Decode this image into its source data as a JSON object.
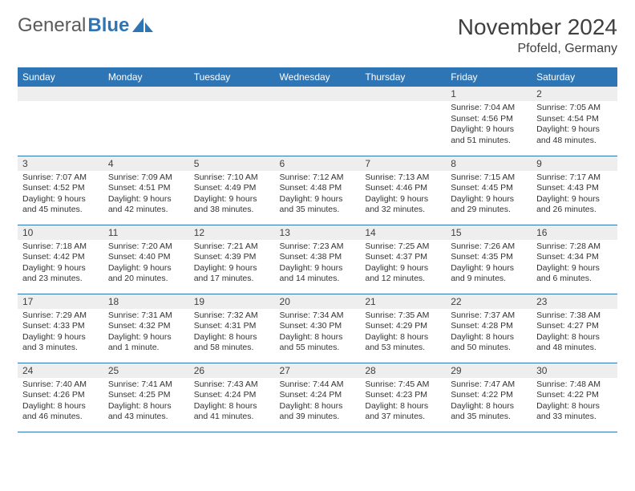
{
  "brand": {
    "part1": "General",
    "part2": "Blue"
  },
  "title": "November 2024",
  "location": "Pfofeld, Germany",
  "colors": {
    "header_bg": "#2e75b6",
    "header_fg": "#ffffff",
    "daynum_bg": "#eeeeee",
    "text": "#333333",
    "rule": "#2e75b6",
    "background": "#ffffff"
  },
  "typography": {
    "title_fontsize": 28,
    "location_fontsize": 16,
    "weekday_fontsize": 12,
    "daynum_fontsize": 12,
    "details_fontsize": 10.5
  },
  "layout": {
    "columns": 7,
    "rows": 5,
    "leading_blanks": 5
  },
  "weekdays": [
    "Sunday",
    "Monday",
    "Tuesday",
    "Wednesday",
    "Thursday",
    "Friday",
    "Saturday"
  ],
  "days": [
    {
      "n": 1,
      "sunrise": "7:04 AM",
      "sunset": "4:56 PM",
      "daylight": "9 hours and 51 minutes."
    },
    {
      "n": 2,
      "sunrise": "7:05 AM",
      "sunset": "4:54 PM",
      "daylight": "9 hours and 48 minutes."
    },
    {
      "n": 3,
      "sunrise": "7:07 AM",
      "sunset": "4:52 PM",
      "daylight": "9 hours and 45 minutes."
    },
    {
      "n": 4,
      "sunrise": "7:09 AM",
      "sunset": "4:51 PM",
      "daylight": "9 hours and 42 minutes."
    },
    {
      "n": 5,
      "sunrise": "7:10 AM",
      "sunset": "4:49 PM",
      "daylight": "9 hours and 38 minutes."
    },
    {
      "n": 6,
      "sunrise": "7:12 AM",
      "sunset": "4:48 PM",
      "daylight": "9 hours and 35 minutes."
    },
    {
      "n": 7,
      "sunrise": "7:13 AM",
      "sunset": "4:46 PM",
      "daylight": "9 hours and 32 minutes."
    },
    {
      "n": 8,
      "sunrise": "7:15 AM",
      "sunset": "4:45 PM",
      "daylight": "9 hours and 29 minutes."
    },
    {
      "n": 9,
      "sunrise": "7:17 AM",
      "sunset": "4:43 PM",
      "daylight": "9 hours and 26 minutes."
    },
    {
      "n": 10,
      "sunrise": "7:18 AM",
      "sunset": "4:42 PM",
      "daylight": "9 hours and 23 minutes."
    },
    {
      "n": 11,
      "sunrise": "7:20 AM",
      "sunset": "4:40 PM",
      "daylight": "9 hours and 20 minutes."
    },
    {
      "n": 12,
      "sunrise": "7:21 AM",
      "sunset": "4:39 PM",
      "daylight": "9 hours and 17 minutes."
    },
    {
      "n": 13,
      "sunrise": "7:23 AM",
      "sunset": "4:38 PM",
      "daylight": "9 hours and 14 minutes."
    },
    {
      "n": 14,
      "sunrise": "7:25 AM",
      "sunset": "4:37 PM",
      "daylight": "9 hours and 12 minutes."
    },
    {
      "n": 15,
      "sunrise": "7:26 AM",
      "sunset": "4:35 PM",
      "daylight": "9 hours and 9 minutes."
    },
    {
      "n": 16,
      "sunrise": "7:28 AM",
      "sunset": "4:34 PM",
      "daylight": "9 hours and 6 minutes."
    },
    {
      "n": 17,
      "sunrise": "7:29 AM",
      "sunset": "4:33 PM",
      "daylight": "9 hours and 3 minutes."
    },
    {
      "n": 18,
      "sunrise": "7:31 AM",
      "sunset": "4:32 PM",
      "daylight": "9 hours and 1 minute."
    },
    {
      "n": 19,
      "sunrise": "7:32 AM",
      "sunset": "4:31 PM",
      "daylight": "8 hours and 58 minutes."
    },
    {
      "n": 20,
      "sunrise": "7:34 AM",
      "sunset": "4:30 PM",
      "daylight": "8 hours and 55 minutes."
    },
    {
      "n": 21,
      "sunrise": "7:35 AM",
      "sunset": "4:29 PM",
      "daylight": "8 hours and 53 minutes."
    },
    {
      "n": 22,
      "sunrise": "7:37 AM",
      "sunset": "4:28 PM",
      "daylight": "8 hours and 50 minutes."
    },
    {
      "n": 23,
      "sunrise": "7:38 AM",
      "sunset": "4:27 PM",
      "daylight": "8 hours and 48 minutes."
    },
    {
      "n": 24,
      "sunrise": "7:40 AM",
      "sunset": "4:26 PM",
      "daylight": "8 hours and 46 minutes."
    },
    {
      "n": 25,
      "sunrise": "7:41 AM",
      "sunset": "4:25 PM",
      "daylight": "8 hours and 43 minutes."
    },
    {
      "n": 26,
      "sunrise": "7:43 AM",
      "sunset": "4:24 PM",
      "daylight": "8 hours and 41 minutes."
    },
    {
      "n": 27,
      "sunrise": "7:44 AM",
      "sunset": "4:24 PM",
      "daylight": "8 hours and 39 minutes."
    },
    {
      "n": 28,
      "sunrise": "7:45 AM",
      "sunset": "4:23 PM",
      "daylight": "8 hours and 37 minutes."
    },
    {
      "n": 29,
      "sunrise": "7:47 AM",
      "sunset": "4:22 PM",
      "daylight": "8 hours and 35 minutes."
    },
    {
      "n": 30,
      "sunrise": "7:48 AM",
      "sunset": "4:22 PM",
      "daylight": "8 hours and 33 minutes."
    }
  ],
  "labels": {
    "sunrise": "Sunrise:",
    "sunset": "Sunset:",
    "daylight": "Daylight:"
  }
}
